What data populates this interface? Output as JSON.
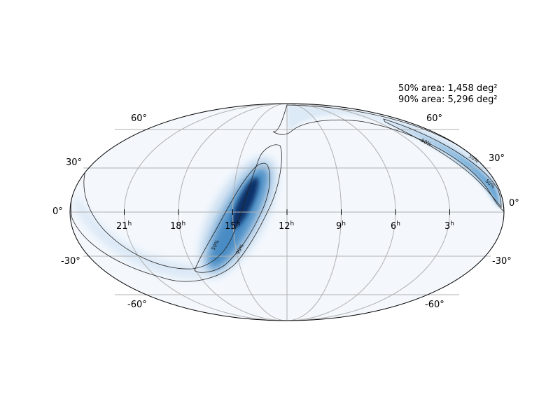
{
  "annotations": {
    "area_50": "50% area: 1,458 deg²",
    "area_90": "90% area: 5,296 deg²"
  },
  "ra_labels": [
    {
      "hours": 21,
      "text": "21",
      "sup": "h"
    },
    {
      "hours": 18,
      "text": "18",
      "sup": "h"
    },
    {
      "hours": 15,
      "text": "15",
      "sup": "h"
    },
    {
      "hours": 12,
      "text": "12",
      "sup": "h"
    },
    {
      "hours": 9,
      "text": "9",
      "sup": "h"
    },
    {
      "hours": 6,
      "text": "6",
      "sup": "h"
    },
    {
      "hours": 3,
      "text": "3",
      "sup": "h"
    }
  ],
  "dec_labels": [
    {
      "dec": 60,
      "text": "60°"
    },
    {
      "dec": 30,
      "text": "30°"
    },
    {
      "dec": 0,
      "text": "0°"
    },
    {
      "dec": -30,
      "text": "-30°"
    },
    {
      "dec": -60,
      "text": "-60°"
    }
  ],
  "contour_labels": {
    "c50": "50%",
    "c90": "90%"
  },
  "projection": "mollweide",
  "colors": {
    "background_fill": "#f4f8fd",
    "high_prob": "#08306b",
    "mid_prob": "#4a8cc4",
    "low_prob": "#c6dbef",
    "grid": "#b0b0b0",
    "contour": "#222222"
  }
}
